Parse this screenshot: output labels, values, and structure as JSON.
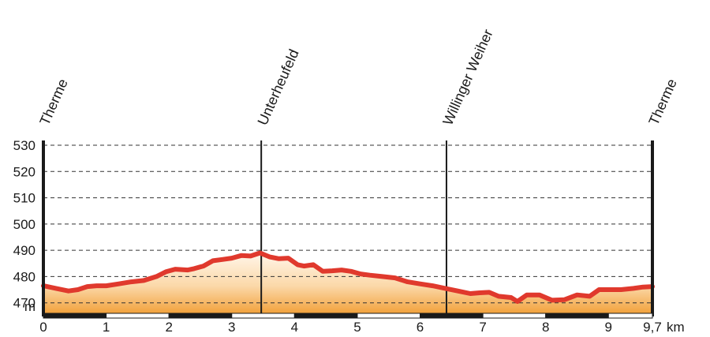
{
  "chart_data": {
    "type": "area",
    "ylabel": "m",
    "xunit": "km",
    "xlim": [
      0,
      9.7
    ],
    "ylim": [
      466,
      530
    ],
    "yticks": [
      470,
      480,
      490,
      500,
      510,
      520,
      530
    ],
    "xticks": [
      {
        "value": 0,
        "label": "0"
      },
      {
        "value": 1,
        "label": "1"
      },
      {
        "value": 2,
        "label": "2"
      },
      {
        "value": 3,
        "label": "3"
      },
      {
        "value": 4,
        "label": "4"
      },
      {
        "value": 5,
        "label": "5"
      },
      {
        "value": 6,
        "label": "6"
      },
      {
        "value": 7,
        "label": "7"
      },
      {
        "value": 8,
        "label": "8"
      },
      {
        "value": 9,
        "label": "9"
      },
      {
        "value": 9.7,
        "label": "9,7"
      }
    ],
    "waypoints": [
      {
        "name": "Therme",
        "km": 0
      },
      {
        "name": "Unterheufeld",
        "km": 3.47
      },
      {
        "name": "Willinger Weiher",
        "km": 6.42
      },
      {
        "name": "Therme",
        "km": 9.7
      }
    ],
    "grid": true,
    "colors": {
      "line": "#e0392d",
      "fill_top": "#fff6ea",
      "fill_bottom": "#f2a23c",
      "axis": "#1a1a1a"
    },
    "x": [
      0,
      0.2,
      0.4,
      0.55,
      0.7,
      0.85,
      1.0,
      1.2,
      1.4,
      1.6,
      1.8,
      1.95,
      2.1,
      2.3,
      2.4,
      2.55,
      2.7,
      2.85,
      3.0,
      3.15,
      3.3,
      3.45,
      3.6,
      3.75,
      3.9,
      4.05,
      4.15,
      4.3,
      4.45,
      4.6,
      4.75,
      4.9,
      5.05,
      5.2,
      5.4,
      5.6,
      5.8,
      6.0,
      6.2,
      6.4,
      6.6,
      6.8,
      6.95,
      7.1,
      7.25,
      7.45,
      7.55,
      7.7,
      7.9,
      8.1,
      8.3,
      8.5,
      8.7,
      8.85,
      9.0,
      9.2,
      9.4,
      9.55,
      9.7
    ],
    "y": [
      476.5,
      475.5,
      474.5,
      475,
      476.2,
      476.5,
      476.5,
      477.2,
      478,
      478.5,
      480,
      481.8,
      482.8,
      482.5,
      483,
      484,
      486,
      486.5,
      487,
      488,
      487.8,
      489,
      487.5,
      486.8,
      487,
      484.5,
      484,
      484.5,
      482,
      482.2,
      482.5,
      482,
      481,
      480.5,
      480,
      479.5,
      478,
      477.2,
      476.5,
      475.5,
      474.5,
      473.5,
      473.8,
      474,
      472.5,
      472,
      470.5,
      473,
      473,
      471,
      471.2,
      473,
      472.5,
      475,
      475,
      475,
      475.5,
      476,
      476.2
    ]
  }
}
